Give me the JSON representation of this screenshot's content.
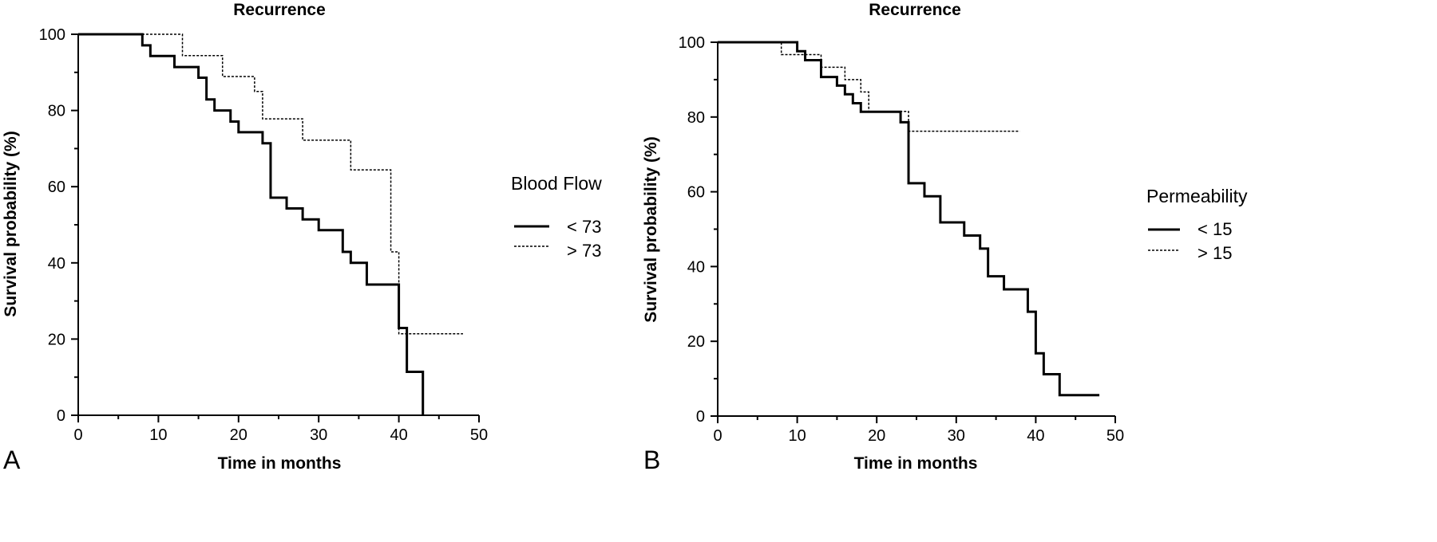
{
  "chart_data": [
    {
      "type": "line",
      "panel": "A",
      "title": "Recurrence",
      "xlabel": "Time in months",
      "ylabel": "Survival probability (%)",
      "xlim": [
        0,
        50
      ],
      "ylim": [
        0,
        100
      ],
      "xticks": [
        0,
        10,
        20,
        30,
        40,
        50
      ],
      "yticks": [
        0,
        20,
        40,
        60,
        80,
        100
      ],
      "grid": false,
      "legend": {
        "title": "Blood Flow",
        "placement": "right"
      },
      "series": [
        {
          "name": "< 73",
          "style": "solid",
          "x": [
            0,
            8,
            9,
            10,
            12,
            15,
            16,
            17,
            19,
            20,
            23,
            24,
            26,
            28,
            30,
            33,
            34,
            36,
            40,
            41,
            43
          ],
          "y": [
            100,
            97.1,
            94.3,
            94.3,
            91.4,
            88.6,
            82.9,
            80,
            77.1,
            74.3,
            71.4,
            57.1,
            54.3,
            51.4,
            48.6,
            42.9,
            40,
            34.3,
            22.9,
            11.4,
            0
          ]
        },
        {
          "name": "> 73",
          "style": "dashed",
          "x": [
            0,
            13,
            18,
            22,
            23,
            28,
            34,
            39,
            40,
            48
          ],
          "y": [
            100,
            94.4,
            88.9,
            85,
            77.8,
            72.2,
            64.4,
            42.9,
            21.4,
            21.4
          ]
        }
      ]
    },
    {
      "type": "line",
      "panel": "B",
      "title": "Recurrence",
      "xlabel": "Time in months",
      "ylabel": "Survival probability (%)",
      "xlim": [
        0,
        50
      ],
      "ylim": [
        0,
        100
      ],
      "xticks": [
        0,
        10,
        20,
        30,
        40,
        50
      ],
      "yticks": [
        0,
        20,
        40,
        60,
        80,
        100
      ],
      "grid": false,
      "legend": {
        "title": "Permeability",
        "placement": "right"
      },
      "series": [
        {
          "name": "< 15",
          "style": "solid",
          "x": [
            0,
            10,
            11,
            12,
            13,
            15,
            16,
            17,
            18,
            22,
            23,
            24,
            26,
            28,
            31,
            33,
            34,
            36,
            39,
            40,
            41,
            43,
            48
          ],
          "y": [
            100,
            97.6,
            95.2,
            95.2,
            90.7,
            88.4,
            86.1,
            83.7,
            81.4,
            81.4,
            78.6,
            62.3,
            58.8,
            51.8,
            48.3,
            44.8,
            37.4,
            33.9,
            27.9,
            16.8,
            11.2,
            5.6,
            5.6
          ]
        },
        {
          "name": "> 15",
          "style": "dashed",
          "x": [
            0,
            8,
            10,
            13,
            16,
            18,
            19,
            20,
            22,
            24,
            38
          ],
          "y": [
            100,
            96.7,
            96.7,
            93.3,
            90,
            86.7,
            81.5,
            81.5,
            81.5,
            76.2,
            76.2
          ]
        }
      ]
    }
  ]
}
